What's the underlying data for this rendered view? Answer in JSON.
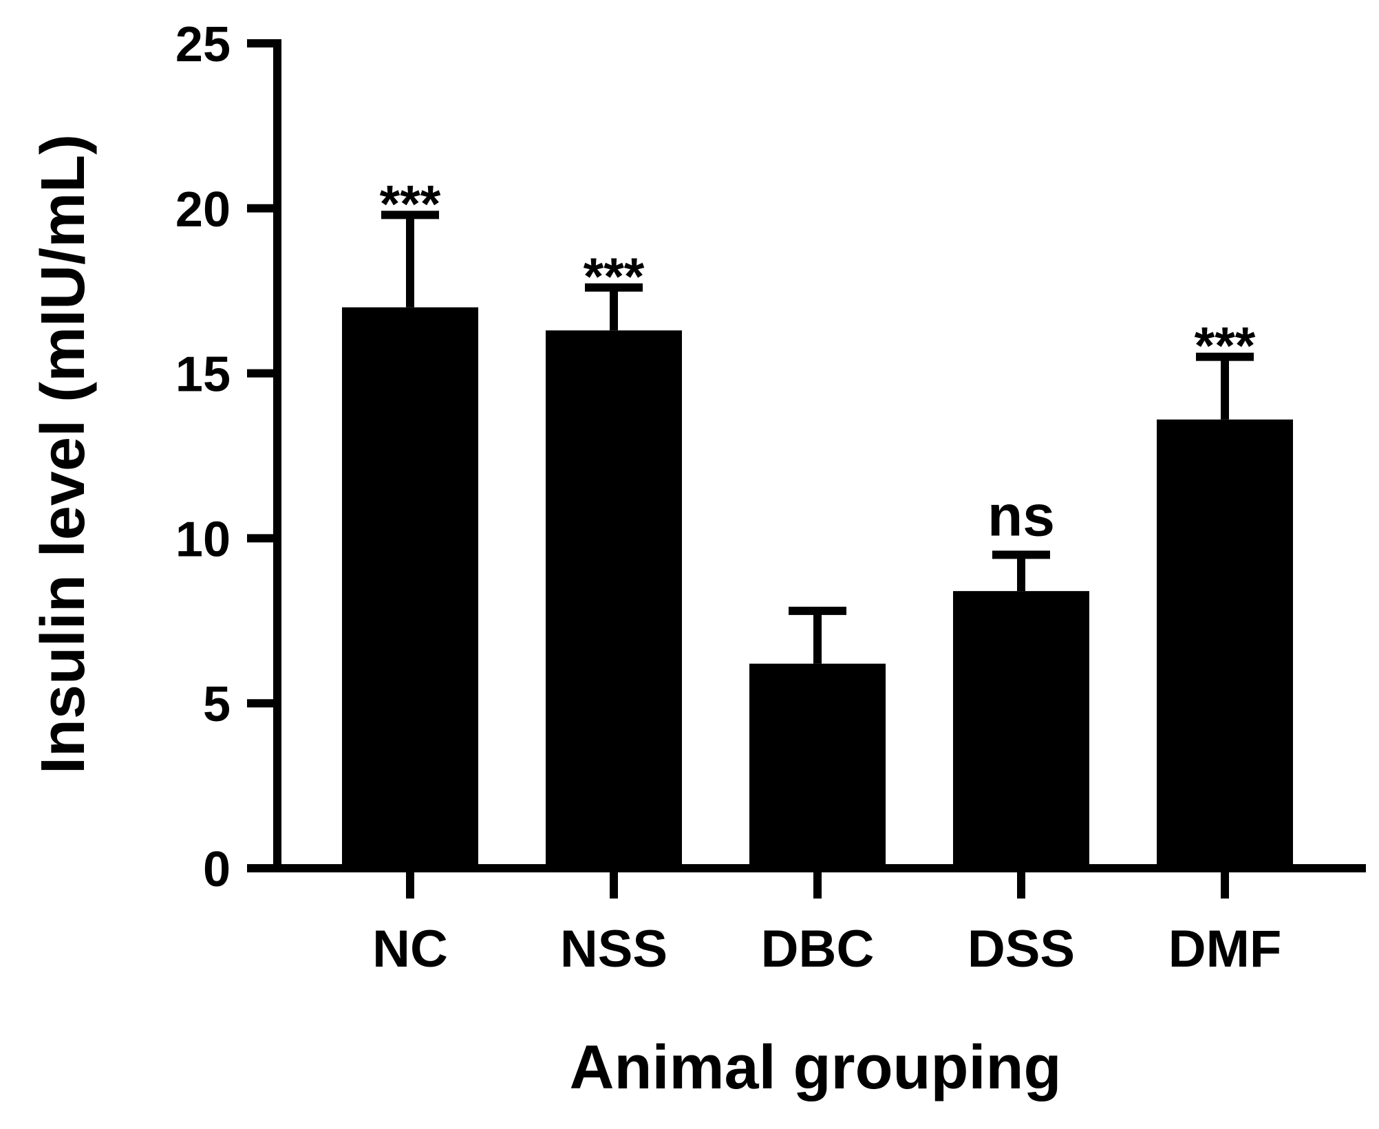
{
  "chart_data": {
    "type": "bar",
    "categories": [
      "NC",
      "NSS",
      "DBC",
      "DSS",
      "DMF"
    ],
    "values": [
      17.0,
      16.3,
      6.2,
      8.4,
      13.6
    ],
    "error": [
      2.8,
      1.3,
      1.6,
      1.1,
      1.9
    ],
    "annotations": [
      "***",
      "***",
      "",
      "ns",
      "***"
    ],
    "xlabel": "Animal grouping",
    "ylabel": "Insulin level (mIU/mL)",
    "ylim": [
      0,
      25
    ],
    "yticks": [
      0,
      5,
      10,
      15,
      20,
      25
    ],
    "bar_color": "#000000",
    "grid": false,
    "legend": "none"
  }
}
